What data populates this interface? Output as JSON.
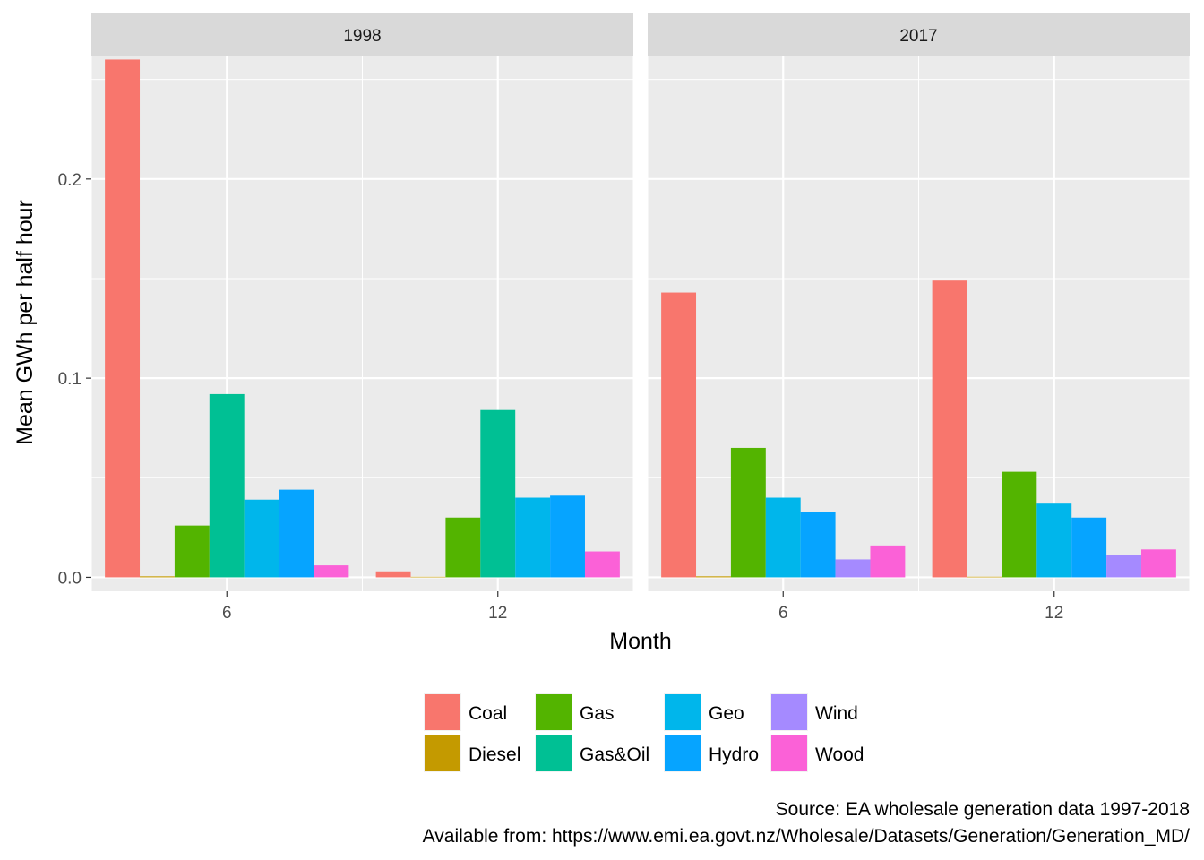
{
  "chart_data": {
    "type": "bar",
    "facet_variable": "year",
    "facets": [
      "1998",
      "2017"
    ],
    "x": [
      6,
      12
    ],
    "x_ticks": [
      "6",
      "12"
    ],
    "xlabel": "Month",
    "ylabel": "Mean GWh per half hour",
    "ylim": [
      -0.007,
      0.262
    ],
    "y_ticks": [
      0.0,
      0.1,
      0.2
    ],
    "y_tick_labels": [
      "0.0",
      "0.1",
      "0.2"
    ],
    "grid": true,
    "legend_position": "bottom",
    "series": [
      {
        "name": "Coal",
        "color": "#F8766D",
        "values": {
          "1998": [
            0.26,
            0.003
          ],
          "2017": [
            0.143,
            0.149
          ]
        }
      },
      {
        "name": "Diesel",
        "color": "#C49A00",
        "values": {
          "1998": [
            0.0005,
            0.0
          ],
          "2017": [
            0.0005,
            0.0003
          ]
        }
      },
      {
        "name": "Gas",
        "color": "#53B400",
        "values": {
          "1998": [
            0.026,
            0.03
          ],
          "2017": [
            0.065,
            0.053
          ]
        }
      },
      {
        "name": "Gas&Oil",
        "color": "#00C094",
        "values": {
          "1998": [
            0.092,
            0.084
          ],
          "2017": [
            null,
            null
          ]
        }
      },
      {
        "name": "Geo",
        "color": "#00B6EB",
        "values": {
          "1998": [
            0.039,
            0.04
          ],
          "2017": [
            0.04,
            0.037
          ]
        }
      },
      {
        "name": "Hydro",
        "color": "#06A4FF",
        "values": {
          "1998": [
            0.044,
            0.041
          ],
          "2017": [
            0.033,
            0.03
          ]
        }
      },
      {
        "name": "Wind",
        "color": "#A58AFF",
        "values": {
          "1998": [
            null,
            null
          ],
          "2017": [
            0.009,
            0.011
          ]
        }
      },
      {
        "name": "Wood",
        "color": "#FB61D7",
        "values": {
          "1998": [
            0.006,
            0.013
          ],
          "2017": [
            0.016,
            0.014
          ]
        }
      }
    ],
    "legend_order": [
      "Coal",
      "Diesel",
      "Gas",
      "Gas&Oil",
      "Geo",
      "Hydro",
      "Wind",
      "Wood"
    ]
  },
  "caption": {
    "line1": "Source: EA wholesale generation data 1997-2018",
    "line2": "Available from: https://www.emi.ea.govt.nz/Wholesale/Datasets/Generation/Generation_MD/"
  }
}
